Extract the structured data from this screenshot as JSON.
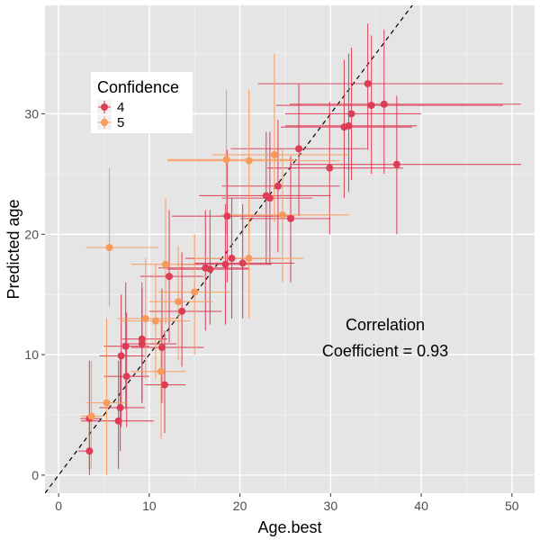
{
  "chart_data": {
    "type": "scatter",
    "title": "",
    "xlabel": "Age.best",
    "ylabel": "Predicted age",
    "xlim": [
      -1.5,
      52.5
    ],
    "ylim": [
      -1.5,
      39
    ],
    "xticks": [
      0,
      10,
      20,
      30,
      40,
      50
    ],
    "yticks": [
      0,
      10,
      20,
      30
    ],
    "grid": true,
    "reference_line": {
      "type": "identity",
      "style": "dashed"
    },
    "legend": {
      "title": "Confidence",
      "placement": "top-left",
      "entries": [
        {
          "label": "4",
          "color": "#dc3c55"
        },
        {
          "label": "5",
          "color": "#f89a5a"
        }
      ]
    },
    "annotation": {
      "line1": "Correlation",
      "line2": "Coefficient = 0.93"
    },
    "series": [
      {
        "name": "4",
        "color": "#dc3c55",
        "points": [
          {
            "x": 3.4,
            "y": 4.7,
            "xerr": [
              2.4,
              4.6
            ],
            "yerr": [
              0.5,
              9.5
            ]
          },
          {
            "x": 3.4,
            "y": 2.0,
            "xerr": [
              2.2,
              3.8
            ],
            "yerr": [
              0,
              4.5
            ]
          },
          {
            "x": 6.6,
            "y": 4.5,
            "xerr": [
              2.5,
              10.5
            ],
            "yerr": [
              0.5,
              9.5
            ]
          },
          {
            "x": 6.8,
            "y": 5.6,
            "xerr": [
              4.5,
              9.5
            ],
            "yerr": [
              2,
              10
            ]
          },
          {
            "x": 6.9,
            "y": 9.9,
            "xerr": [
              4.5,
              9.5
            ],
            "yerr": [
              4,
              15
            ]
          },
          {
            "x": 7.4,
            "y": 10.7,
            "xerr": [
              5,
              10
            ],
            "yerr": [
              5.5,
              16
            ]
          },
          {
            "x": 7.5,
            "y": 8.2,
            "xerr": [
              5,
              10
            ],
            "yerr": [
              4,
              13.5
            ]
          },
          {
            "x": 9.2,
            "y": 11.3,
            "xerr": [
              7,
              12
            ],
            "yerr": [
              6,
              16
            ]
          },
          {
            "x": 9.2,
            "y": 10.9,
            "xerr": [
              7,
              13
            ],
            "yerr": [
              6,
              15.5
            ]
          },
          {
            "x": 11.4,
            "y": 10.6,
            "xerr": [
              8,
              16
            ],
            "yerr": [
              6,
              15.5
            ]
          },
          {
            "x": 11.7,
            "y": 7.5,
            "xerr": [
              9.5,
              14
            ],
            "yerr": [
              3.5,
              12
            ]
          },
          {
            "x": 12.2,
            "y": 16.5,
            "xerr": [
              9,
              16
            ],
            "yerr": [
              11,
              22
            ]
          },
          {
            "x": 13.6,
            "y": 13.6,
            "xerr": [
              10,
              18
            ],
            "yerr": [
              9,
              18.5
            ]
          },
          {
            "x": 16.2,
            "y": 17.2,
            "xerr": [
              11,
              21
            ],
            "yerr": [
              12,
              22
            ]
          },
          {
            "x": 16.7,
            "y": 17.1,
            "xerr": [
              12,
              21
            ],
            "yerr": [
              12.5,
              22
            ]
          },
          {
            "x": 18.4,
            "y": 17.5,
            "xerr": [
              13.5,
              23.5
            ],
            "yerr": [
              12.5,
              22.5
            ]
          },
          {
            "x": 18.6,
            "y": 21.5,
            "xerr": [
              12.5,
              26
            ],
            "yerr": [
              16,
              27
            ]
          },
          {
            "x": 19.1,
            "y": 18.0,
            "xerr": [
              14,
              24.5
            ],
            "yerr": [
              13,
              23
            ]
          },
          {
            "x": 20.3,
            "y": 17.6,
            "xerr": [
              15,
              26
            ],
            "yerr": [
              13,
              22.5
            ]
          },
          {
            "x": 22.9,
            "y": 23.2,
            "xerr": [
              15.5,
              30
            ],
            "yerr": [
              17.5,
              28.5
            ]
          },
          {
            "x": 23.3,
            "y": 23.0,
            "xerr": [
              18,
              28
            ],
            "yerr": [
              17.5,
              28.5
            ]
          },
          {
            "x": 24.2,
            "y": 24.0,
            "xerr": [
              18,
              31
            ],
            "yerr": [
              18.5,
              29.5
            ]
          },
          {
            "x": 25.6,
            "y": 21.3,
            "xerr": [
              20,
              30
            ],
            "yerr": [
              16,
              26.5
            ]
          },
          {
            "x": 26.5,
            "y": 27.1,
            "xerr": [
              19,
              34
            ],
            "yerr": [
              21.5,
              32.5
            ]
          },
          {
            "x": 29.9,
            "y": 25.5,
            "xerr": [
              23,
              38
            ],
            "yerr": [
              20,
              31
            ]
          },
          {
            "x": 31.5,
            "y": 28.9,
            "xerr": [
              24.5,
              39
            ],
            "yerr": [
              23,
              34.5
            ]
          },
          {
            "x": 32.0,
            "y": 29.0,
            "xerr": [
              25,
              39.5
            ],
            "yerr": [
              23.5,
              35
            ]
          },
          {
            "x": 32.3,
            "y": 30.0,
            "xerr": [
              25,
              40
            ],
            "yerr": [
              24.5,
              35.5
            ]
          },
          {
            "x": 34.1,
            "y": 32.5,
            "xerr": [
              22,
              49
            ],
            "yerr": [
              27,
              37.5
            ]
          },
          {
            "x": 34.5,
            "y": 30.7,
            "xerr": [
              24,
              49
            ],
            "yerr": [
              25,
              36.5
            ]
          },
          {
            "x": 35.9,
            "y": 30.8,
            "xerr": [
              25.5,
              51
            ],
            "yerr": [
              25,
              37
            ]
          },
          {
            "x": 37.3,
            "y": 25.8,
            "xerr": [
              25.5,
              51
            ],
            "yerr": [
              20,
              31.5
            ]
          }
        ]
      },
      {
        "name": "5",
        "color": "#f89a5a",
        "points": [
          {
            "x": 3.6,
            "y": 4.9,
            "xerr": [
              2.5,
              5
            ],
            "yerr": [
              0.5,
              9.5
            ]
          },
          {
            "x": 5.3,
            "y": 6.0,
            "xerr": [
              3,
              7.5
            ],
            "yerr": [
              0,
              13
            ]
          },
          {
            "x": 5.6,
            "y": 18.9,
            "xerr": [
              3,
              11
            ],
            "yerr": [
              14,
              25.5
            ]
          },
          {
            "x": 9.6,
            "y": 13.0,
            "xerr": [
              6.5,
              13
            ],
            "yerr": [
              8,
              18
            ]
          },
          {
            "x": 10.7,
            "y": 12.8,
            "xerr": [
              7,
              14.5
            ],
            "yerr": [
              8,
              17.5
            ]
          },
          {
            "x": 11.3,
            "y": 8.6,
            "xerr": [
              8,
              14
            ],
            "yerr": [
              3,
              13
            ]
          },
          {
            "x": 11.8,
            "y": 17.5,
            "xerr": [
              8,
              15
            ],
            "yerr": [
              12.5,
              23
            ]
          },
          {
            "x": 13.2,
            "y": 14.4,
            "xerr": [
              10,
              17
            ],
            "yerr": [
              9.5,
              19
            ]
          },
          {
            "x": 15.0,
            "y": 15.2,
            "xerr": [
              11,
              19
            ],
            "yerr": [
              10,
              20
            ]
          },
          {
            "x": 18.5,
            "y": 26.2,
            "xerr": [
              12,
              26
            ],
            "yerr": [
              20,
              32
            ]
          },
          {
            "x": 21.0,
            "y": 26.1,
            "xerr": [
              12,
              31
            ],
            "yerr": [
              20,
              32
            ]
          },
          {
            "x": 21.0,
            "y": 18.0,
            "xerr": [
              15,
              27
            ],
            "yerr": [
              13,
              23
            ]
          },
          {
            "x": 23.8,
            "y": 26.6,
            "xerr": [
              17,
              32
            ],
            "yerr": [
              21,
              35
            ]
          },
          {
            "x": 24.7,
            "y": 21.6,
            "xerr": [
              18,
              32
            ],
            "yerr": [
              16,
              27
            ]
          }
        ]
      }
    ]
  }
}
